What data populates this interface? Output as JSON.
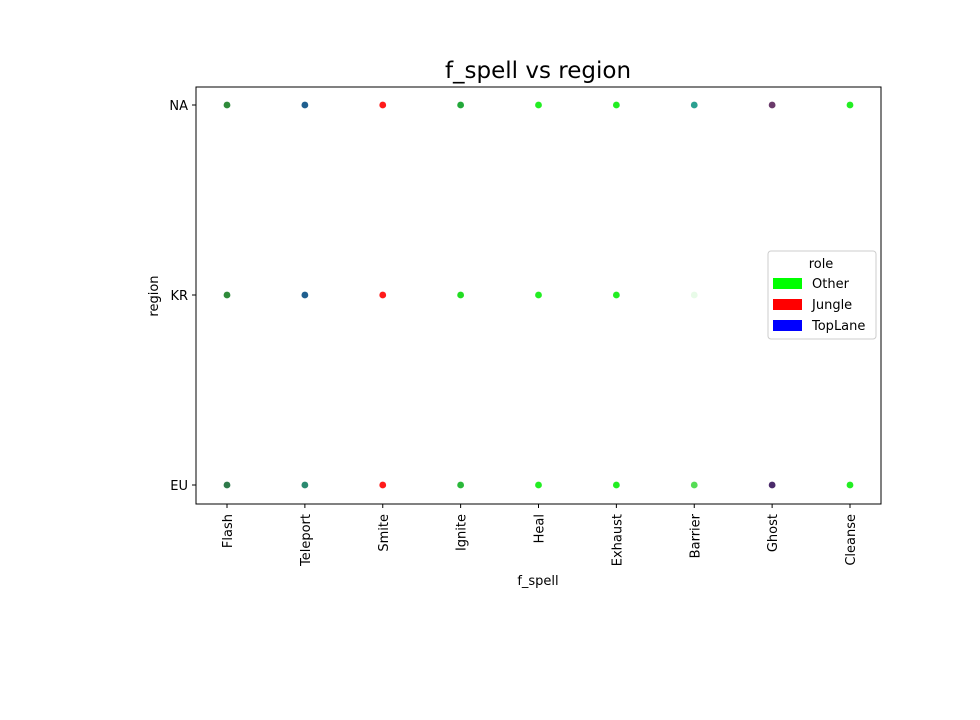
{
  "chart_data": {
    "type": "scatter",
    "title": "f_spell vs region",
    "xlabel": "f_spell",
    "ylabel": "region",
    "categories_x": [
      "Flash",
      "Teleport",
      "Smite",
      "Ignite",
      "Heal",
      "Exhaust",
      "Barrier",
      "Ghost",
      "Cleanse"
    ],
    "categories_y": [
      "EU",
      "KR",
      "NA"
    ],
    "legend": {
      "title": "role",
      "placement": "right",
      "entries": [
        {
          "label": "Other",
          "color": "#00ff00"
        },
        {
          "label": "Jungle",
          "color": "#ff0000"
        },
        {
          "label": "TopLane",
          "color": "#0000ff"
        }
      ]
    },
    "points": [
      {
        "x": "Flash",
        "y": "NA",
        "color": "#2e8b3a"
      },
      {
        "x": "Teleport",
        "y": "NA",
        "color": "#1f5f8f"
      },
      {
        "x": "Smite",
        "y": "NA",
        "color": "#ff1a1a"
      },
      {
        "x": "Ignite",
        "y": "NA",
        "color": "#23a83a"
      },
      {
        "x": "Heal",
        "y": "NA",
        "color": "#22ee22"
      },
      {
        "x": "Exhaust",
        "y": "NA",
        "color": "#22ee22"
      },
      {
        "x": "Barrier",
        "y": "NA",
        "color": "#2aa090"
      },
      {
        "x": "Ghost",
        "y": "NA",
        "color": "#6a3a6a"
      },
      {
        "x": "Cleanse",
        "y": "NA",
        "color": "#22ee22"
      },
      {
        "x": "Flash",
        "y": "KR",
        "color": "#2e8b3a"
      },
      {
        "x": "Teleport",
        "y": "KR",
        "color": "#1f5f8f"
      },
      {
        "x": "Smite",
        "y": "KR",
        "color": "#ff1a1a"
      },
      {
        "x": "Ignite",
        "y": "KR",
        "color": "#22dd22"
      },
      {
        "x": "Heal",
        "y": "KR",
        "color": "#22ee22"
      },
      {
        "x": "Exhaust",
        "y": "KR",
        "color": "#22ee22"
      },
      {
        "x": "Barrier",
        "y": "KR",
        "color": "#e8fbe8"
      },
      {
        "x": "Flash",
        "y": "EU",
        "color": "#2e7a4a"
      },
      {
        "x": "Teleport",
        "y": "EU",
        "color": "#2a8a70"
      },
      {
        "x": "Smite",
        "y": "EU",
        "color": "#ff1a1a"
      },
      {
        "x": "Ignite",
        "y": "EU",
        "color": "#2ab83a"
      },
      {
        "x": "Heal",
        "y": "EU",
        "color": "#22ee22"
      },
      {
        "x": "Exhaust",
        "y": "EU",
        "color": "#22ee22"
      },
      {
        "x": "Barrier",
        "y": "EU",
        "color": "#55dd55"
      },
      {
        "x": "Ghost",
        "y": "EU",
        "color": "#4a2a6a"
      },
      {
        "x": "Cleanse",
        "y": "EU",
        "color": "#22ee22"
      }
    ],
    "grid": false
  }
}
